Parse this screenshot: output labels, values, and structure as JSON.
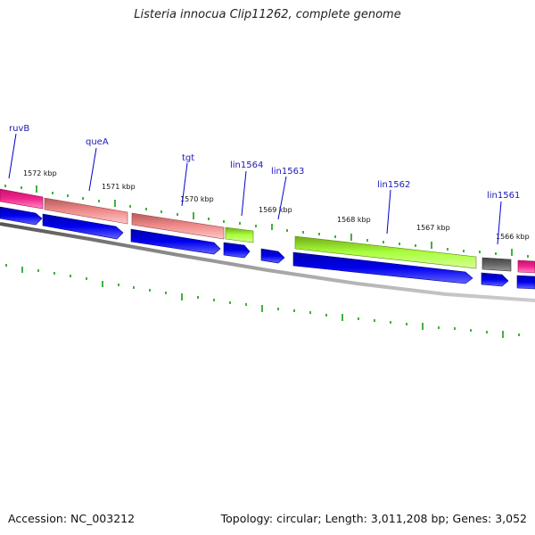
{
  "title": "Listeria innocua Clip11262, complete genome",
  "footer": {
    "accession": "Accession: NC_003212",
    "summary": "Topology: circular; Length: 3,011,208 bp; Genes: 3,052"
  },
  "colors": {
    "cds_blue": "#0000ee",
    "trna_salmon": "#f08c8c",
    "pink": "#f0288c",
    "green": "#aaff3c",
    "gray": "#666666",
    "backbone": "#888888",
    "tick_green": "#009900",
    "label_blue": "#1a1ab3"
  },
  "kbp_labels": [
    "1572 kbp",
    "1571 kbp",
    "1570 kbp",
    "1569 kbp",
    "1568 kbp",
    "1567 kbp",
    "1566 kbp"
  ],
  "genes": [
    {
      "name": "ruvB",
      "color": "pink"
    },
    {
      "name": "queA",
      "color": "salmon"
    },
    {
      "name": "tgt",
      "color": "salmon"
    },
    {
      "name": "lin1564",
      "color": "green"
    },
    {
      "name": "lin1563",
      "color": "none"
    },
    {
      "name": "lin1562",
      "color": "green"
    },
    {
      "name": "lin1561",
      "color": "gray"
    }
  ]
}
